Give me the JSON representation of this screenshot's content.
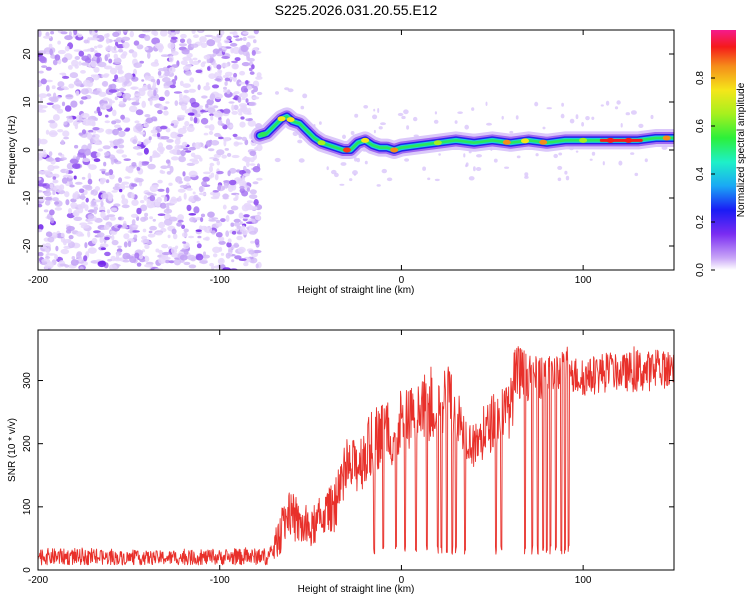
{
  "title": "S225.2026.031.20.55.E12",
  "chart_data": [
    {
      "type": "heatmap",
      "title": "S225.2026.031.20.55.E12",
      "xlabel": "Height of straight line (km)",
      "ylabel": "Frequency (Hz)",
      "xlim": [
        -200,
        150
      ],
      "ylim": [
        -25,
        25
      ],
      "xticks": [
        -200,
        -100,
        0,
        100
      ],
      "yticks": [
        -20,
        -10,
        0,
        10,
        20
      ],
      "noise_region_x": [
        -200,
        -78
      ],
      "ridge": {
        "x": [
          -78,
          -74,
          -70,
          -66,
          -63,
          -60,
          -56,
          -52,
          -48,
          -44,
          -40,
          -36,
          -32,
          -28,
          -24,
          -20,
          -16,
          -12,
          -8,
          -4,
          0,
          10,
          20,
          30,
          40,
          50,
          60,
          70,
          80,
          90,
          100,
          110,
          120,
          130,
          140,
          150
        ],
        "y": [
          3,
          3.5,
          5,
          6.5,
          7,
          6,
          5.5,
          4,
          2.5,
          1.5,
          1,
          0.5,
          0,
          0,
          1.5,
          2,
          1,
          0.5,
          0.5,
          0,
          0.5,
          1,
          1.5,
          2,
          1.5,
          2,
          1.5,
          2,
          1.5,
          2,
          2,
          2,
          2,
          2,
          2.5,
          2.5
        ]
      },
      "colorbar": {
        "label": "Normalized spectral amplitude",
        "ticks": [
          0.0,
          0.2,
          0.4,
          0.6,
          0.8
        ],
        "tick_labels": [
          "0.0",
          "0.2",
          "0.4",
          "0.6",
          "0.8"
        ],
        "range": [
          0,
          1
        ]
      }
    },
    {
      "type": "line",
      "xlabel": "Height of straight line (km)",
      "ylabel": "SNR (10 * v/v)",
      "xlim": [
        -200,
        150
      ],
      "ylim": [
        0,
        380
      ],
      "xticks": [
        -200,
        -100,
        0,
        100
      ],
      "yticks": [
        0,
        100,
        200,
        300
      ],
      "color": "#e8302a",
      "envelope": {
        "x": [
          -200,
          -150,
          -100,
          -72,
          -65,
          -62,
          -58,
          -50,
          -45,
          -40,
          -35,
          -30,
          -25,
          -20,
          -15,
          -10,
          -5,
          0,
          5,
          10,
          15,
          20,
          25,
          28,
          30,
          35,
          40,
          45,
          50,
          55,
          60,
          62,
          65,
          70,
          80,
          90,
          100,
          110,
          120,
          130,
          140,
          150
        ],
        "lo": [
          8,
          8,
          8,
          8,
          30,
          60,
          40,
          30,
          50,
          60,
          60,
          110,
          120,
          130,
          150,
          170,
          160,
          180,
          190,
          195,
          200,
          210,
          215,
          220,
          200,
          180,
          160,
          170,
          190,
          200,
          210,
          240,
          250,
          270,
          270,
          280,
          275,
          280,
          285,
          280,
          285,
          290
        ],
        "hi": [
          35,
          30,
          32,
          35,
          110,
          125,
          110,
          90,
          110,
          130,
          150,
          200,
          210,
          230,
          250,
          270,
          260,
          280,
          290,
          300,
          310,
          320,
          325,
          320,
          300,
          250,
          230,
          250,
          280,
          290,
          300,
          350,
          360,
          340,
          340,
          350,
          330,
          345,
          340,
          350,
          345,
          350
        ]
      },
      "dropouts_x": [
        -15,
        -10,
        -3,
        2,
        8,
        14,
        20,
        22,
        25,
        28,
        30,
        35,
        52,
        55,
        68,
        72,
        75,
        78,
        80,
        82,
        85,
        88,
        90,
        92
      ]
    }
  ]
}
